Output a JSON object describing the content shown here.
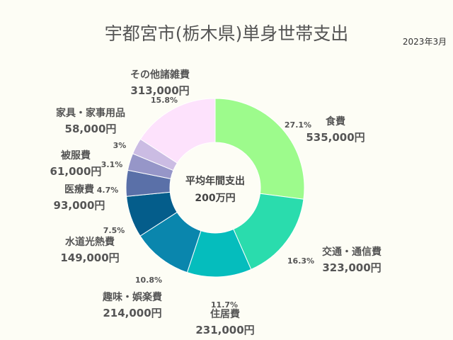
{
  "date_label": "2023年3月",
  "chart_data": {
    "type": "pie",
    "title": "宇都宮市(栃木県)単身世帯支出",
    "center_label": [
      "平均年間支出",
      "200万円"
    ],
    "slices": [
      {
        "category": "食費",
        "value_label": "535,000円",
        "value": 535000,
        "percent_label": "27.1%",
        "color": "#9dfb8c"
      },
      {
        "category": "交通・通信費",
        "value_label": "323,000円",
        "value": 323000,
        "percent_label": "16.3%",
        "color": "#2adcad"
      },
      {
        "category": "住居費",
        "value_label": "231,000円",
        "value": 231000,
        "percent_label": "11.7%",
        "color": "#05bdbd"
      },
      {
        "category": "趣味・娯楽費",
        "value_label": "214,000円",
        "value": 214000,
        "percent_label": "10.8%",
        "color": "#0a86ad"
      },
      {
        "category": "水道光熱費",
        "value_label": "149,000円",
        "value": 149000,
        "percent_label": "7.5%",
        "color": "#045d8b"
      },
      {
        "category": "医療費",
        "value_label": "93,000円",
        "value": 93000,
        "percent_label": "4.7%",
        "color": "#5a70a8"
      },
      {
        "category": "被服費",
        "value_label": "61,000円",
        "value": 61000,
        "percent_label": "3.1%",
        "color": "#9696c8"
      },
      {
        "category": "家具・家事用品",
        "value_label": "58,000円",
        "value": 58000,
        "percent_label": "3%",
        "color": "#cbbce3"
      },
      {
        "category": "その他諸雑費",
        "value_label": "313,000円",
        "value": 313000,
        "percent_label": "15.8%",
        "color": "#fde2fc"
      }
    ]
  }
}
